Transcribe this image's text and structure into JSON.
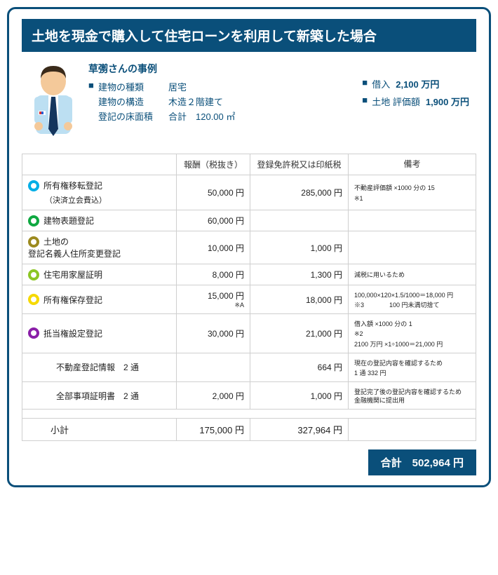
{
  "title": "土地を現金で購入して住宅ローンを利用して新築した場合",
  "caseName": "草彅さんの事例",
  "leftSpecs": [
    {
      "sq": true,
      "label": "建物の種類",
      "val": "居宅"
    },
    {
      "sq": false,
      "label": "建物の構造",
      "val": "木造２階建て"
    },
    {
      "sq": false,
      "label": "登記の床面積",
      "val": "合計　120.00 ㎡"
    }
  ],
  "rightSpecs": [
    {
      "label": "借入",
      "val": "2,100 万円"
    },
    {
      "label": "土地 評価額",
      "val": "1,900 万円"
    }
  ],
  "headers": {
    "fee": "報酬（税抜き）",
    "tax": "登録免許税又は印紙税",
    "note": "備考"
  },
  "rows": [
    {
      "ring": "ring-cyan",
      "name": "所有権移転登記",
      "sub": "（決済立会費込）",
      "fee": "50,000 円",
      "tax": "285,000 円",
      "note": "不動産評価額 ×1000 分の 15\n※1"
    },
    {
      "ring": "ring-green",
      "name": "建物表題登記",
      "fee": "60,000 円",
      "tax": "",
      "note": ""
    },
    {
      "ring": "ring-olive",
      "name": "土地の\n登記名義人住所変更登記",
      "fee": "10,000 円",
      "tax": "1,000 円",
      "note": ""
    },
    {
      "ring": "ring-lime",
      "name": "住宅用家屋証明",
      "fee": "8,000 円",
      "tax": "1,300 円",
      "note": "減税に用いるため"
    },
    {
      "ring": "ring-yellow",
      "name": "所有権保存登記",
      "fee": "15,000 円",
      "feeSub": "※A",
      "tax": "18,000 円",
      "note": "100,000×120×1.5/1000＝18,000 円\n※3　　　　100 円未満切捨て"
    },
    {
      "ring": "ring-purple",
      "name": "抵当権設定登記",
      "fee": "30,000 円",
      "tax": "21,000 円",
      "note": "借入額 ×1000 分の 1\n※2\n2100 万円 ×1÷1000＝21,000 円"
    },
    {
      "name": "不動産登記情報　2 通",
      "fee": "",
      "tax": "664 円",
      "note": "現在の登記内容を確認するため\n1 通 332 円"
    },
    {
      "name": "全部事項証明書　2 通",
      "fee": "2,000 円",
      "tax": "1,000 円",
      "note": "登記完了後の登記内容を確認するため　金融機関に提出用"
    }
  ],
  "subtotal": {
    "label": "小計",
    "fee": "175,000 円",
    "tax": "327,964 円"
  },
  "grandTotal": "合計　502,964 円"
}
